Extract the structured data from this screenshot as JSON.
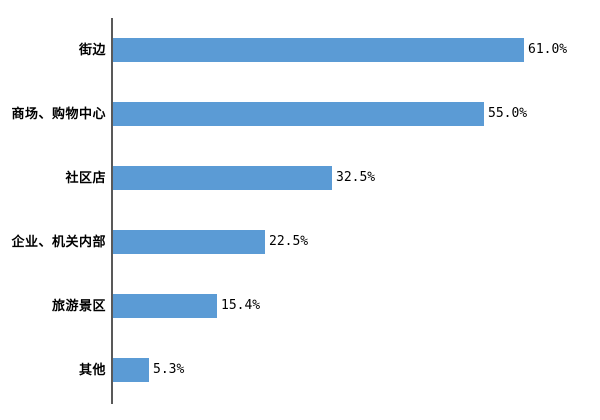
{
  "chart_data": {
    "type": "bar",
    "orientation": "horizontal",
    "title": "",
    "xlabel": "",
    "ylabel": "",
    "grid": false,
    "legend": false,
    "xlim": [
      0,
      100
    ],
    "categories": [
      "街边",
      "商场、购物中心",
      "社区店",
      "企业、机关内部",
      "旅游景区",
      "其他"
    ],
    "values": [
      61.0,
      55.0,
      32.5,
      22.5,
      15.4,
      5.3
    ],
    "value_labels": [
      "61.0%",
      "55.0%",
      "32.5%",
      "22.5%",
      "15.4%",
      "5.3%"
    ],
    "colors": {
      "bar": "#5B9BD5",
      "axis_line": "#595959",
      "text": "#000000",
      "background": "#ffffff"
    }
  }
}
